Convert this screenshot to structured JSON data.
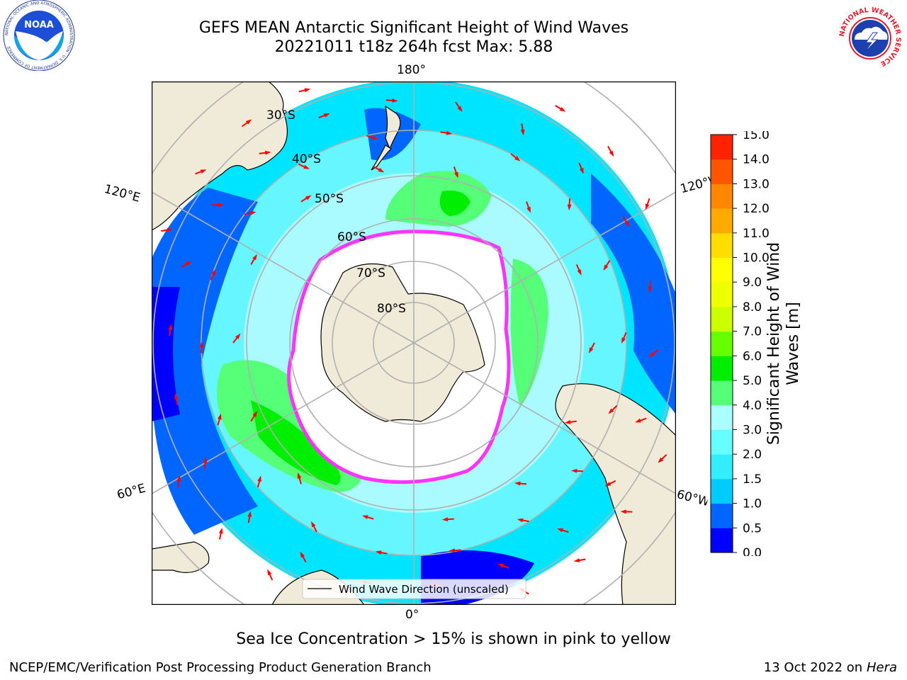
{
  "title_line1": "GEFS MEAN Antarctic Significant Height of Wind Waves",
  "title_line2": "20221011 t18z 264h fcst   Max: 5.88",
  "map": {
    "projection": "south-polar-stereographic",
    "longitude_labels": [
      "180°",
      "120°E",
      "120°W",
      "60°E",
      "60°W",
      "0°"
    ],
    "latitude_labels": [
      "30°S",
      "40°S",
      "50°S",
      "60°S",
      "70°S",
      "80°S"
    ],
    "legend_label": "Wind Wave Direction (unscaled)",
    "field_colors": {
      "ice": "#ffffff",
      "land": "#efebd8",
      "arrow": "#ff0000",
      "sea_ice_edge": "#ff33ff"
    }
  },
  "colorbar": {
    "label_line1": "Significant Height of Wind",
    "label_line2": "Waves [m]",
    "ticks": [
      "0.0",
      "0.5",
      "1.0",
      "1.5",
      "2.0",
      "3.0",
      "4.0",
      "5.0",
      "6.0",
      "7.0",
      "8.0",
      "9.0",
      "10.0",
      "11.0",
      "12.0",
      "13.0",
      "14.0",
      "15.0"
    ],
    "colors": [
      "#0000ff",
      "#0066ff",
      "#00ccff",
      "#33eeff",
      "#66ffff",
      "#aaffff",
      "#55ff77",
      "#00ee00",
      "#66ff00",
      "#ccff00",
      "#eeff00",
      "#ffff00",
      "#ffdd00",
      "#ffaa00",
      "#ff8800",
      "#ff5500",
      "#ff2200"
    ]
  },
  "note": "Sea Ice Concentration > 15% is shown in pink to yellow",
  "footer_left": "NCEP/EMC/Verification Post Processing Product Generation Branch",
  "footer_right_date": "13 Oct 2022 on ",
  "footer_right_host": "Hera",
  "logos": {
    "noaa_text": "NOAA",
    "noaa_ring_text": "NATIONAL OCEANIC AND ATMOSPHERIC ADMINISTRATION · U.S. DEPARTMENT OF COMMERCE",
    "nws_ring_text": "NATIONAL WEATHER SERVICE"
  }
}
